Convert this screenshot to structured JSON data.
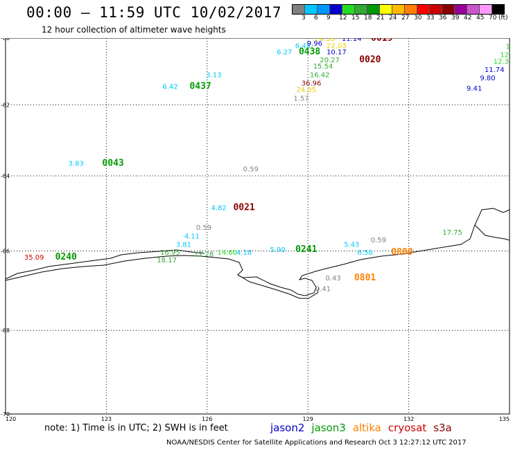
{
  "header": {
    "title": "00:00 – 11:59 UTC 10/02/2017",
    "subtitle": "12 hour collection of altimeter wave heights"
  },
  "legend": {
    "colors": [
      "#808080",
      "#00c8ff",
      "#0096ff",
      "#0000cc",
      "#22dd22",
      "#33aa33",
      "#009900",
      "#ffff00",
      "#ffbb00",
      "#ff8000",
      "#ff0000",
      "#cc0000",
      "#880000",
      "#990099",
      "#cc55cc",
      "#ff99ff",
      "#000000"
    ],
    "labels": [
      "3",
      "6",
      "9",
      "12",
      "15",
      "18",
      "21",
      "24",
      "27",
      "30",
      "33",
      "36",
      "39",
      "42",
      "45",
      "70"
    ],
    "unit": "(ft)"
  },
  "axes": {
    "x_ticks": [
      "120",
      "123",
      "126",
      "129",
      "132",
      "135"
    ],
    "y_ticks": [
      "-60",
      "-62",
      "-64",
      "-66",
      "-68",
      "-70"
    ]
  },
  "observations": [
    {
      "text": "24.18",
      "lon": 129.5,
      "lat": -60.0,
      "color": "#eecc00"
    },
    {
      "text": "11.14",
      "lon": 130.3,
      "lat": -60.0,
      "color": "#0000cc"
    },
    {
      "text": "0019",
      "lon": 131.2,
      "lat": -60.0,
      "color": "#880000",
      "pass": true
    },
    {
      "text": "6.45",
      "lon": 128.85,
      "lat": -60.22,
      "color": "#00c8ff"
    },
    {
      "text": "9.96",
      "lon": 129.2,
      "lat": -60.15,
      "color": "#0000cc"
    },
    {
      "text": "22.03",
      "lon": 129.85,
      "lat": -60.22,
      "color": "#eecc00"
    },
    {
      "text": "6.27",
      "lon": 128.3,
      "lat": -60.42,
      "color": "#00c8ff"
    },
    {
      "text": "0438",
      "lon": 129.05,
      "lat": -60.42,
      "color": "#009900",
      "pass": true
    },
    {
      "text": "10.17",
      "lon": 129.85,
      "lat": -60.42,
      "color": "#0000cc"
    },
    {
      "text": "20.27",
      "lon": 129.65,
      "lat": -60.66,
      "color": "#33aa33"
    },
    {
      "text": "0020",
      "lon": 130.85,
      "lat": -60.66,
      "color": "#880000",
      "pass": true
    },
    {
      "text": "15.54",
      "lon": 129.45,
      "lat": -60.85,
      "color": "#33aa33"
    },
    {
      "text": "16.42",
      "lon": 129.35,
      "lat": -61.1,
      "color": "#33aa33"
    },
    {
      "text": "3.13",
      "lon": 126.2,
      "lat": -61.1,
      "color": "#00c8ff"
    },
    {
      "text": "36.96",
      "lon": 129.1,
      "lat": -61.35,
      "color": "#880000"
    },
    {
      "text": "6.42",
      "lon": 124.9,
      "lat": -61.45,
      "color": "#00c8ff"
    },
    {
      "text": "0437",
      "lon": 125.8,
      "lat": -61.45,
      "color": "#009900",
      "pass": true
    },
    {
      "text": "24.35",
      "lon": 128.95,
      "lat": -61.55,
      "color": "#eecc00"
    },
    {
      "text": "1.57",
      "lon": 128.8,
      "lat": -61.8,
      "color": "#808080"
    },
    {
      "text": "3.83",
      "lon": 122.1,
      "lat": -63.65,
      "color": "#00c8ff"
    },
    {
      "text": "0043",
      "lon": 123.2,
      "lat": -63.65,
      "color": "#009900",
      "pass": true
    },
    {
      "text": "0.59",
      "lon": 127.3,
      "lat": -63.8,
      "color": "#808080"
    },
    {
      "text": "4.82",
      "lon": 126.35,
      "lat": -64.85,
      "color": "#00c8ff"
    },
    {
      "text": "0021",
      "lon": 127.1,
      "lat": -64.85,
      "color": "#880000",
      "pass": true
    },
    {
      "text": "0.59",
      "lon": 125.9,
      "lat": -65.38,
      "color": "#808080"
    },
    {
      "text": "4.11",
      "lon": 125.55,
      "lat": -65.6,
      "color": "#00c8ff"
    },
    {
      "text": "3.81",
      "lon": 125.3,
      "lat": -65.82,
      "color": "#00c8ff"
    },
    {
      "text": "16.95",
      "lon": 124.9,
      "lat": -66.03,
      "color": "#33aa33"
    },
    {
      "text": "17.28",
      "lon": 125.9,
      "lat": -66.07,
      "color": "#33aa33"
    },
    {
      "text": "14.60",
      "lon": 126.6,
      "lat": -66.03,
      "color": "#22dd22"
    },
    {
      "text": "4.18",
      "lon": 127.1,
      "lat": -66.03,
      "color": "#00c8ff"
    },
    {
      "text": "5.90",
      "lon": 128.1,
      "lat": -65.95,
      "color": "#00c8ff"
    },
    {
      "text": "0241",
      "lon": 128.95,
      "lat": -65.95,
      "color": "#009900",
      "pass": true
    },
    {
      "text": "5.43",
      "lon": 130.3,
      "lat": -65.82,
      "color": "#00c8ff"
    },
    {
      "text": "0.59",
      "lon": 131.1,
      "lat": -65.7,
      "color": "#808080"
    },
    {
      "text": "6.58",
      "lon": 130.7,
      "lat": -66.03,
      "color": "#00c8ff"
    },
    {
      "text": "0800",
      "lon": 131.8,
      "lat": -66.03,
      "color": "#ff8000",
      "pass": true
    },
    {
      "text": "17.75",
      "lon": 133.3,
      "lat": -65.5,
      "color": "#33aa33"
    },
    {
      "text": "35.09",
      "lon": 120.85,
      "lat": -66.15,
      "color": "#cc0000"
    },
    {
      "text": "0240",
      "lon": 121.8,
      "lat": -66.15,
      "color": "#009900",
      "pass": true
    },
    {
      "text": "18.17",
      "lon": 124.8,
      "lat": -66.22,
      "color": "#33aa33"
    },
    {
      "text": "0.43",
      "lon": 129.75,
      "lat": -66.68,
      "color": "#808080"
    },
    {
      "text": "0801",
      "lon": 130.7,
      "lat": -66.68,
      "color": "#ff8000",
      "pass": true
    },
    {
      "text": "0.41",
      "lon": 129.45,
      "lat": -66.95,
      "color": "#808080"
    },
    {
      "text": "1",
      "lon": 134.95,
      "lat": -60.25,
      "color": "#22dd22"
    },
    {
      "text": "12",
      "lon": 134.85,
      "lat": -60.5,
      "color": "#22dd22"
    },
    {
      "text": "12.3",
      "lon": 134.75,
      "lat": -60.7,
      "color": "#22dd22"
    },
    {
      "text": "11.74",
      "lon": 134.55,
      "lat": -60.95,
      "color": "#0000cc"
    },
    {
      "text": "9.80",
      "lon": 134.35,
      "lat": -61.2,
      "color": "#0000cc"
    },
    {
      "text": "9.41",
      "lon": 133.95,
      "lat": -61.5,
      "color": "#0000cc"
    }
  ],
  "footer": {
    "note": "note:  1) Time is in UTC;  2) SWH is in feet",
    "satellites": [
      {
        "name": "jason2",
        "color": "#0000cc"
      },
      {
        "name": "jason3",
        "color": "#009900"
      },
      {
        "name": "altika",
        "color": "#ff8000"
      },
      {
        "name": "cryosat",
        "color": "#cc0000"
      },
      {
        "name": "s3a",
        "color": "#880000"
      }
    ],
    "credit": "NOAA/NESDIS Center for Satellite Applications and Research     Oct  3 12:27:12 UTC 2017"
  }
}
